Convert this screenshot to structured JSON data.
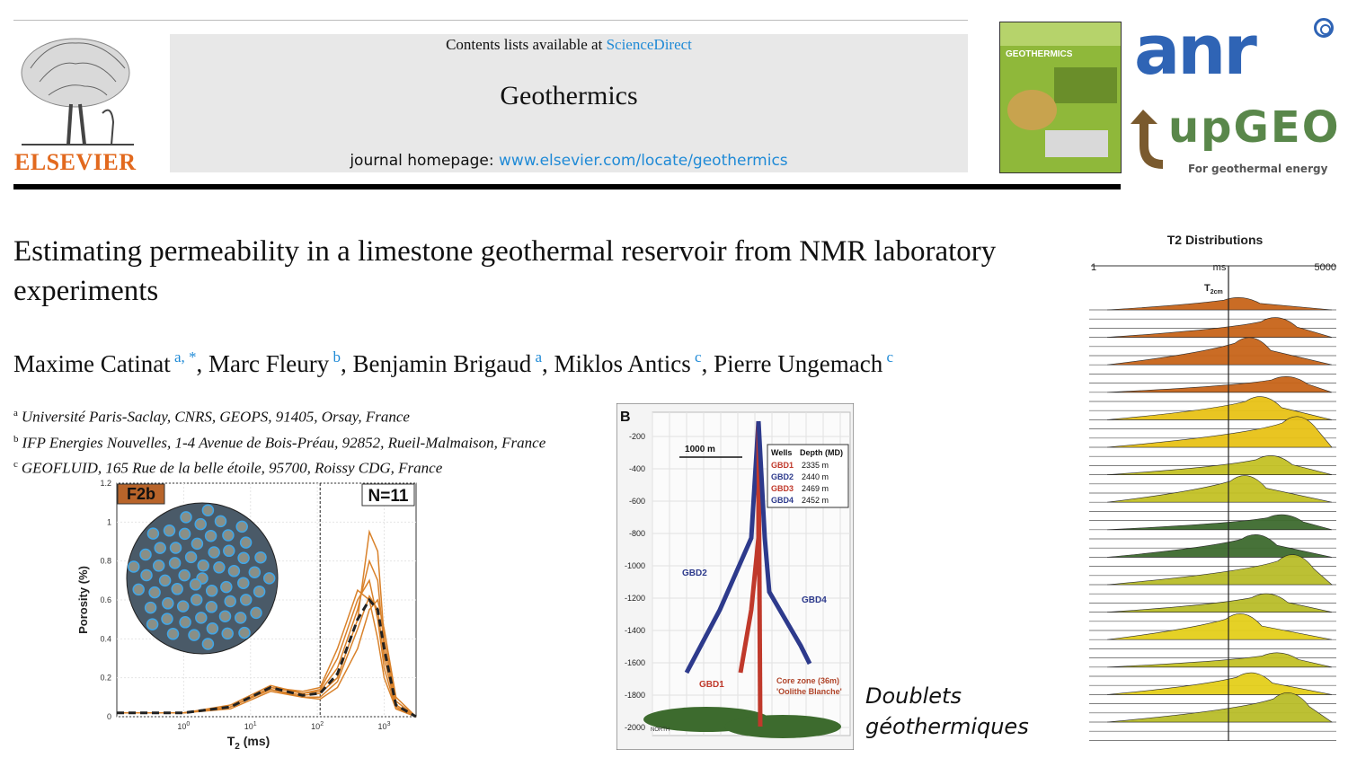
{
  "header": {
    "contents_prefix": "Contents lists available at",
    "contents_link": "ScienceDirect",
    "journal_name": "Geothermics",
    "homepage_prefix": "journal homepage:",
    "homepage_link": "www.elsevier.com/locate/geothermics",
    "publisher": "ELSEVIER",
    "cover_title": "GEOTHERMICS"
  },
  "logos": {
    "anr": "anr",
    "upgeo": "upGEO",
    "upgeo_tagline": "For geothermal energy"
  },
  "article": {
    "title": "Estimating permeability in a limestone geothermal reservoir from NMR laboratory experiments",
    "authors": [
      {
        "name": "Maxime Catinat",
        "aff": "a,*"
      },
      {
        "name": "Marc Fleury",
        "aff": "b"
      },
      {
        "name": "Benjamin Brigaud",
        "aff": "a"
      },
      {
        "name": "Miklos Antics",
        "aff": "c"
      },
      {
        "name": "Pierre Ungemach",
        "aff": "c"
      }
    ],
    "affiliations": [
      {
        "key": "a",
        "text": "Université Paris-Saclay, CNRS, GEOPS, 91405, Orsay, France"
      },
      {
        "key": "b",
        "text": "IFP Energies Nouvelles, 1-4 Avenue de Bois-Préau, 92852, Rueil-Malmaison, France"
      },
      {
        "key": "c",
        "text": "GEOFLUID, 165 Rue de la belle étoile, 95700, Roissy CDG, France"
      }
    ]
  },
  "caption_doublets": [
    "Doublets",
    "géothermiques"
  ],
  "chart_data": [
    {
      "type": "line",
      "panel_label": "F2b",
      "annotation": "N=11",
      "xlabel": "T2 (ms)",
      "ylabel": "Porosity (%)",
      "xscale": "log",
      "xlim": [
        0.1,
        3000
      ],
      "ylim": [
        0,
        1.2
      ],
      "xticks": [
        "10^0",
        "10^1",
        "10^2",
        "10^3"
      ],
      "yticks": [
        "0",
        "0.2",
        "0.4",
        "0.6",
        "0.8",
        "1",
        "1.2"
      ],
      "cutoff_x": 110,
      "series": [
        {
          "x": [
            0.1,
            1,
            5,
            20,
            60,
            110,
            200,
            400,
            600,
            800,
            1000,
            1500,
            3000
          ],
          "values": [
            0.02,
            0.02,
            0.05,
            0.14,
            0.11,
            0.12,
            0.2,
            0.5,
            0.95,
            0.85,
            0.4,
            0.08,
            0
          ]
        },
        {
          "x": [
            0.1,
            1,
            5,
            20,
            60,
            110,
            200,
            400,
            600,
            800,
            1000,
            1500,
            3000
          ],
          "values": [
            0.02,
            0.02,
            0.05,
            0.15,
            0.12,
            0.13,
            0.25,
            0.55,
            0.8,
            0.7,
            0.35,
            0.06,
            0
          ]
        },
        {
          "x": [
            0.1,
            1,
            5,
            20,
            60,
            110,
            200,
            400,
            600,
            800,
            1000,
            1500,
            3000
          ],
          "values": [
            0.02,
            0.02,
            0.04,
            0.13,
            0.1,
            0.1,
            0.18,
            0.45,
            0.62,
            0.55,
            0.3,
            0.05,
            0
          ]
        },
        {
          "x": [
            0.1,
            1,
            5,
            20,
            60,
            110,
            200,
            400,
            600,
            800,
            1000,
            1500,
            3000
          ],
          "values": [
            0.02,
            0.02,
            0.06,
            0.16,
            0.12,
            0.14,
            0.3,
            0.6,
            0.7,
            0.5,
            0.25,
            0.04,
            0
          ]
        },
        {
          "x": [
            0.1,
            1,
            5,
            20,
            60,
            110,
            200,
            400,
            600,
            800,
            1000,
            1500,
            3000
          ],
          "values": [
            0.02,
            0.02,
            0.05,
            0.14,
            0.1,
            0.09,
            0.15,
            0.35,
            0.55,
            0.6,
            0.45,
            0.1,
            0
          ]
        },
        {
          "x": [
            0.1,
            1,
            5,
            20,
            60,
            110,
            200,
            400,
            600,
            800,
            1000,
            1500,
            3000
          ],
          "values": [
            0.02,
            0.02,
            0.05,
            0.15,
            0.13,
            0.15,
            0.35,
            0.65,
            0.6,
            0.4,
            0.2,
            0.04,
            0
          ]
        }
      ],
      "mean_series": {
        "x": [
          0.1,
          1,
          5,
          20,
          60,
          110,
          200,
          400,
          600,
          800,
          1000,
          1500,
          3000
        ],
        "values": [
          0.02,
          0.02,
          0.05,
          0.15,
          0.11,
          0.12,
          0.22,
          0.5,
          0.6,
          0.55,
          0.35,
          0.06,
          0
        ]
      }
    },
    {
      "type": "diagram",
      "panel_label": "B",
      "scale_label": "1000 m",
      "yticks": [
        "-200",
        "-400",
        "-600",
        "-800",
        "-1000",
        "-1200",
        "-1400",
        "-1600",
        "-1800",
        "-2000"
      ],
      "table_headers": [
        "Wells",
        "Depth (MD)"
      ],
      "wells": [
        {
          "name": "GBD1",
          "depth": "2335 m",
          "color": "#c0392b"
        },
        {
          "name": "GBD2",
          "depth": "2440 m",
          "color": "#2d3a8c"
        },
        {
          "name": "GBD3",
          "depth": "2469 m",
          "color": "#c0392b"
        },
        {
          "name": "GBD4",
          "depth": "2452 m",
          "color": "#2d3a8c"
        }
      ],
      "labels": [
        "GBD2",
        "GBD4",
        "GBD1"
      ],
      "core_label": [
        "Core zone (36m)",
        "'Oolithe Blanche'"
      ],
      "north_label": "NORTH"
    },
    {
      "type": "area",
      "title": "T2 Distributions",
      "xmin_label": "1",
      "xunit_label": "ms",
      "xmax_label": "5000",
      "cutoff_label": "T2cm"
    }
  ]
}
